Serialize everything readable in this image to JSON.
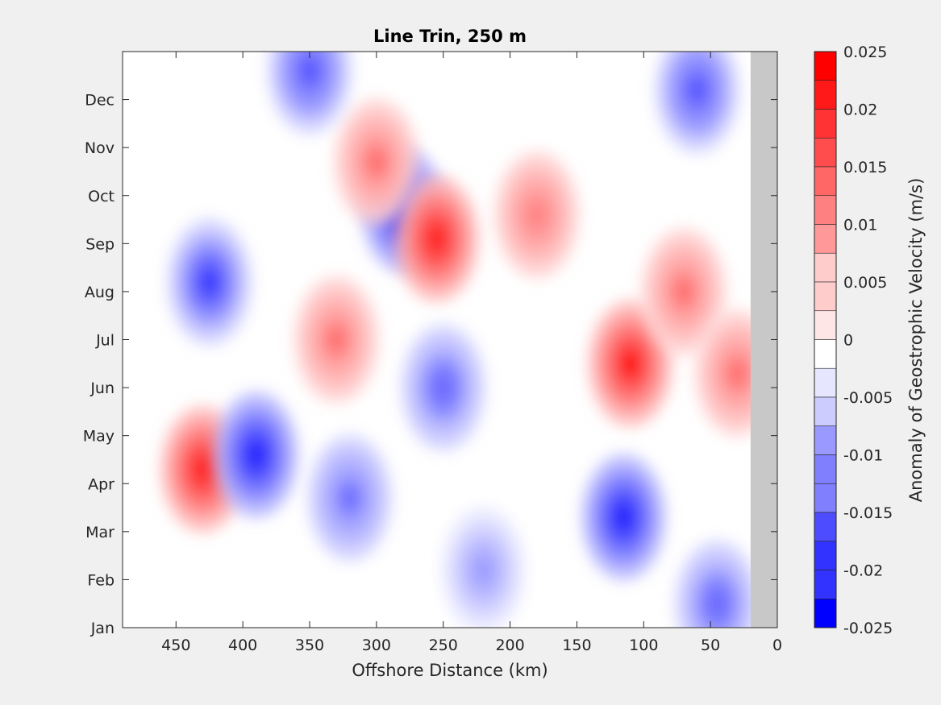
{
  "chart_data": {
    "type": "heatmap",
    "title": "Line Trin, 250 m",
    "xlabel": "Offshore Distance (km)",
    "ylabel": "",
    "x_ticks": [
      450,
      400,
      350,
      300,
      250,
      200,
      150,
      100,
      50,
      0
    ],
    "xlim": [
      490,
      0
    ],
    "x_reversed": true,
    "y_ticks": [
      "Jan",
      "Feb",
      "Mar",
      "Apr",
      "May",
      "Jun",
      "Jul",
      "Aug",
      "Sep",
      "Oct",
      "Nov",
      "Dec"
    ],
    "ylim": [
      0,
      12
    ],
    "colorbar": {
      "label": "Anomaly of Geostrophic Velocity (m/s)",
      "ticks": [
        "0.025",
        "0.02",
        "0.015",
        "0.01",
        "0.005",
        "0",
        "-0.005",
        "-0.01",
        "-0.015",
        "-0.02",
        "-0.025"
      ],
      "range": [
        -0.025,
        0.025
      ],
      "levels": 20,
      "colors": {
        "positive": "#ff0000",
        "negative": "#0000ff",
        "zero": "#ffffff"
      }
    },
    "no_data_region": {
      "x_from": 20,
      "x_to": 0,
      "color": "#c8c8c8"
    },
    "anomaly_features": [
      {
        "x": 430,
        "month": 3.3,
        "value": 0.022
      },
      {
        "x": 280,
        "month": 8.7,
        "value": -0.024
      },
      {
        "x": 110,
        "month": 5.5,
        "value": 0.023
      },
      {
        "x": 115,
        "month": 2.3,
        "value": -0.022
      },
      {
        "x": 390,
        "month": 3.6,
        "value": -0.021
      },
      {
        "x": 425,
        "month": 7.2,
        "value": -0.02
      },
      {
        "x": 255,
        "month": 8.1,
        "value": 0.021
      },
      {
        "x": 300,
        "month": 9.7,
        "value": 0.013
      },
      {
        "x": 350,
        "month": 11.6,
        "value": -0.016
      },
      {
        "x": 60,
        "month": 11.2,
        "value": -0.016
      },
      {
        "x": 320,
        "month": 2.7,
        "value": -0.013
      },
      {
        "x": 250,
        "month": 5.0,
        "value": -0.015
      },
      {
        "x": 330,
        "month": 6.0,
        "value": 0.013
      },
      {
        "x": 70,
        "month": 7.0,
        "value": 0.013
      },
      {
        "x": 45,
        "month": 0.5,
        "value": -0.015
      },
      {
        "x": 30,
        "month": 5.3,
        "value": 0.013
      },
      {
        "x": 180,
        "month": 8.6,
        "value": 0.012
      },
      {
        "x": 220,
        "month": 1.2,
        "value": -0.01
      }
    ]
  }
}
